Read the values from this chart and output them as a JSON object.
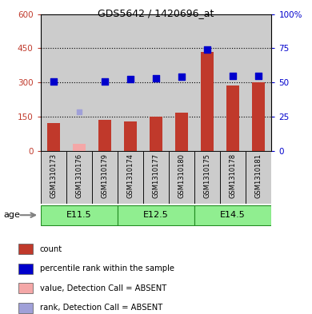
{
  "title": "GDS5642 / 1420696_at",
  "samples": [
    "GSM1310173",
    "GSM1310176",
    "GSM1310179",
    "GSM1310174",
    "GSM1310177",
    "GSM1310180",
    "GSM1310175",
    "GSM1310178",
    "GSM1310181"
  ],
  "counts": [
    120,
    null,
    135,
    128,
    150,
    168,
    435,
    285,
    300
  ],
  "absent_counts": [
    null,
    30,
    null,
    null,
    null,
    null,
    null,
    null,
    null
  ],
  "ranks": [
    305,
    null,
    305,
    315,
    318,
    325,
    445,
    330,
    330
  ],
  "absent_ranks": [
    null,
    170,
    null,
    null,
    null,
    null,
    null,
    null,
    null
  ],
  "groups": [
    {
      "label": "E11.5",
      "start": 0,
      "end": 3
    },
    {
      "label": "E12.5",
      "start": 3,
      "end": 6
    },
    {
      "label": "E14.5",
      "start": 6,
      "end": 9
    }
  ],
  "age_label": "age",
  "ylim_left": [
    0,
    600
  ],
  "yticks_left": [
    0,
    150,
    300,
    450,
    600
  ],
  "ytick_labels_left": [
    "0",
    "150",
    "300",
    "450",
    "600"
  ],
  "ytick_labels_right": [
    "0",
    "25",
    "50",
    "75",
    "100%"
  ],
  "bar_color": "#c0392b",
  "absent_bar_color": "#f4a7a7",
  "rank_color": "#0000cc",
  "absent_rank_color": "#a0a0d8",
  "group_bg": "#90ee90",
  "group_border": "#228B22",
  "col_bg": "#cccccc",
  "legend_items": [
    {
      "color": "#c0392b",
      "label": "count"
    },
    {
      "color": "#0000cc",
      "label": "percentile rank within the sample"
    },
    {
      "color": "#f4a7a7",
      "label": "value, Detection Call = ABSENT"
    },
    {
      "color": "#a0a0d8",
      "label": "rank, Detection Call = ABSENT"
    }
  ]
}
